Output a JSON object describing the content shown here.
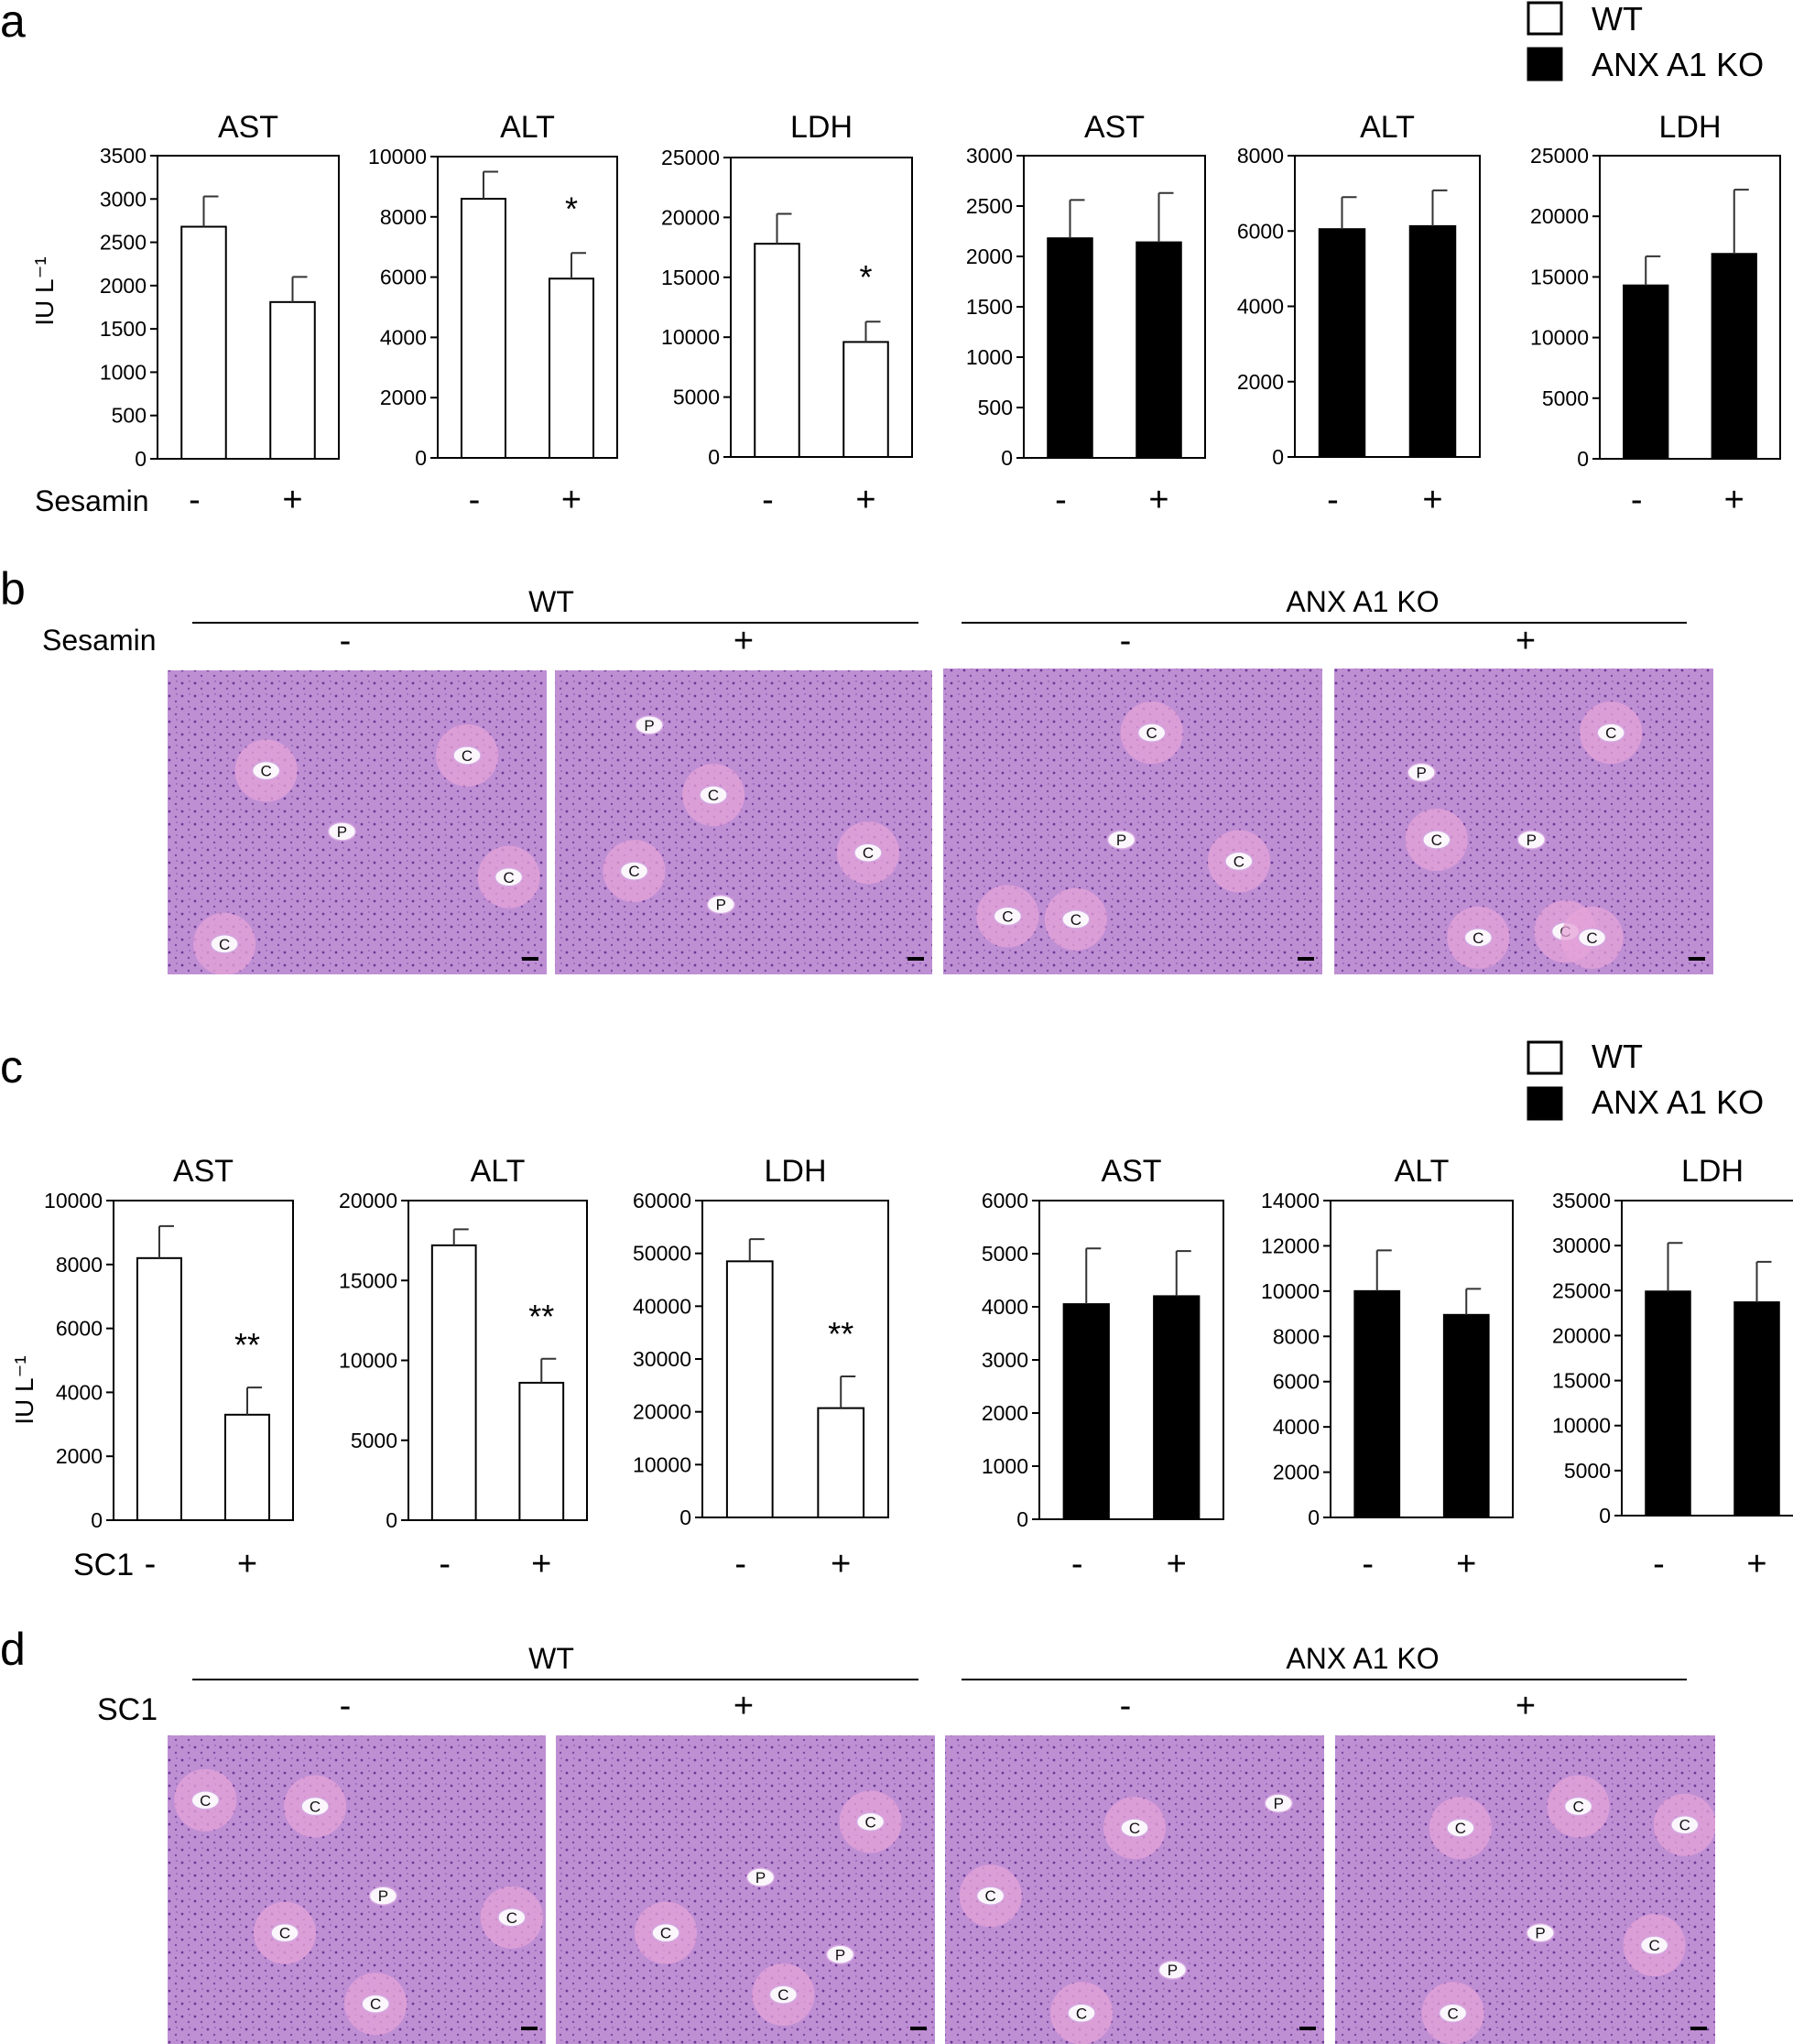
{
  "panel_letters": [
    "a",
    "b",
    "c",
    "d"
  ],
  "legend_top": {
    "wt": "WT",
    "ko": "ANX A1 KO"
  },
  "legend_bottom": {
    "wt": "WT",
    "ko": "ANX A1 KO"
  },
  "treatment": {
    "top": "Sesamin",
    "bottom": "SC1"
  },
  "y_unit_label": "IU L⁻¹",
  "x_symbols": {
    "minus": "-",
    "plus": "+"
  },
  "histology": {
    "b": {
      "group_wt": "WT",
      "group_ko": "ANX A1 KO",
      "treatment": "Sesamin",
      "minus": "-",
      "plus": "+",
      "micrographs": [
        {
          "labels": [
            "C",
            "C",
            "P",
            "C",
            "C"
          ]
        },
        {
          "labels": [
            "P",
            "C",
            "C",
            "C",
            "P"
          ]
        },
        {
          "labels": [
            "C",
            "P",
            "C",
            "C",
            "C"
          ]
        },
        {
          "labels": [
            "C",
            "P",
            "C",
            "P",
            "C",
            "C",
            "C"
          ]
        }
      ]
    },
    "d": {
      "group_wt": "WT",
      "group_ko": "ANX A1 KO",
      "treatment": "SC1",
      "minus": "-",
      "plus": "+",
      "micrographs": [
        {
          "labels": [
            "C",
            "C",
            "P",
            "C",
            "C",
            "C"
          ]
        },
        {
          "labels": [
            "C",
            "P",
            "C",
            "P",
            "C"
          ]
        },
        {
          "labels": [
            "P",
            "C",
            "C",
            "C",
            "P"
          ]
        },
        {
          "labels": [
            "C",
            "C",
            "C",
            "P",
            "C",
            "C"
          ]
        }
      ]
    }
  },
  "colors": {
    "wt_fill": "#ffffff",
    "ko_fill": "#000000",
    "tissue": "#bf8fd4",
    "tissue_pink": "#e6a3d8"
  },
  "chart_data": [
    {
      "type": "bar",
      "panel": "a",
      "title": "AST",
      "group": "WT",
      "categories": [
        "-",
        "+"
      ],
      "values": [
        2680,
        1810
      ],
      "errors": [
        350,
        290
      ],
      "ylim": [
        0,
        3500
      ],
      "yticks": [
        0,
        500,
        1000,
        1500,
        2000,
        2500,
        3000,
        3500
      ],
      "ylabel": "IU L⁻¹",
      "annotation": ""
    },
    {
      "type": "bar",
      "panel": "a",
      "title": "ALT",
      "group": "WT",
      "categories": [
        "-",
        "+"
      ],
      "values": [
        8600,
        5950
      ],
      "errors": [
        900,
        850
      ],
      "ylim": [
        0,
        10000
      ],
      "yticks": [
        0,
        2000,
        4000,
        6000,
        8000,
        10000
      ],
      "annotation": "*"
    },
    {
      "type": "bar",
      "panel": "a",
      "title": "LDH",
      "group": "WT",
      "categories": [
        "-",
        "+"
      ],
      "values": [
        17800,
        9600
      ],
      "errors": [
        2500,
        1700
      ],
      "ylim": [
        0,
        25000
      ],
      "yticks": [
        0,
        5000,
        10000,
        15000,
        20000,
        25000
      ],
      "annotation": "*"
    },
    {
      "type": "bar",
      "panel": "a",
      "title": "AST",
      "group": "ANX A1 KO",
      "categories": [
        "-",
        "+"
      ],
      "values": [
        2180,
        2140
      ],
      "errors": [
        380,
        490
      ],
      "ylim": [
        0,
        3000
      ],
      "yticks": [
        0,
        500,
        1000,
        1500,
        2000,
        2500,
        3000
      ],
      "annotation": ""
    },
    {
      "type": "bar",
      "panel": "a",
      "title": "ALT",
      "group": "ANX A1 KO",
      "categories": [
        "-",
        "+"
      ],
      "values": [
        6050,
        6130
      ],
      "errors": [
        850,
        950
      ],
      "ylim": [
        0,
        8000
      ],
      "yticks": [
        0,
        2000,
        4000,
        6000,
        8000
      ],
      "annotation": ""
    },
    {
      "type": "bar",
      "panel": "a",
      "title": "LDH",
      "group": "ANX A1 KO",
      "categories": [
        "-",
        "+"
      ],
      "values": [
        14300,
        16900
      ],
      "errors": [
        2400,
        5300
      ],
      "ylim": [
        0,
        25000
      ],
      "yticks": [
        0,
        5000,
        10000,
        15000,
        20000,
        25000
      ],
      "annotation": ""
    },
    {
      "type": "bar",
      "panel": "c",
      "title": "AST",
      "group": "WT",
      "categories": [
        "-",
        "+"
      ],
      "values": [
        8200,
        3300
      ],
      "errors": [
        1000,
        850
      ],
      "ylim": [
        0,
        10000
      ],
      "yticks": [
        0,
        2000,
        4000,
        6000,
        8000,
        10000
      ],
      "ylabel": "IU L⁻¹",
      "annotation": "**"
    },
    {
      "type": "bar",
      "panel": "c",
      "title": "ALT",
      "group": "WT",
      "categories": [
        "-",
        "+"
      ],
      "values": [
        17200,
        8600
      ],
      "errors": [
        1000,
        1500
      ],
      "ylim": [
        0,
        20000
      ],
      "yticks": [
        0,
        5000,
        10000,
        15000,
        20000
      ],
      "annotation": "**"
    },
    {
      "type": "bar",
      "panel": "c",
      "title": "LDH",
      "group": "WT",
      "categories": [
        "-",
        "+"
      ],
      "values": [
        48500,
        20700
      ],
      "errors": [
        4200,
        6000
      ],
      "ylim": [
        0,
        60000
      ],
      "yticks": [
        0,
        10000,
        20000,
        30000,
        40000,
        50000,
        60000
      ],
      "annotation": "**"
    },
    {
      "type": "bar",
      "panel": "c",
      "title": "AST",
      "group": "ANX A1 KO",
      "categories": [
        "-",
        "+"
      ],
      "values": [
        4050,
        4200
      ],
      "errors": [
        1050,
        850
      ],
      "ylim": [
        0,
        6000
      ],
      "yticks": [
        0,
        1000,
        2000,
        3000,
        4000,
        5000,
        6000
      ],
      "annotation": ""
    },
    {
      "type": "bar",
      "panel": "c",
      "title": "ALT",
      "group": "ANX A1 KO",
      "categories": [
        "-",
        "+"
      ],
      "values": [
        10000,
        8950
      ],
      "errors": [
        1800,
        1150
      ],
      "ylim": [
        0,
        14000
      ],
      "yticks": [
        0,
        2000,
        4000,
        6000,
        8000,
        10000,
        12000,
        14000
      ],
      "annotation": ""
    },
    {
      "type": "bar",
      "panel": "c",
      "title": "LDH",
      "group": "ANX A1 KO",
      "categories": [
        "-",
        "+"
      ],
      "values": [
        24900,
        23700
      ],
      "errors": [
        5400,
        4500
      ],
      "ylim": [
        0,
        35000
      ],
      "yticks": [
        0,
        5000,
        10000,
        15000,
        20000,
        25000,
        30000,
        35000
      ],
      "annotation": ""
    }
  ]
}
